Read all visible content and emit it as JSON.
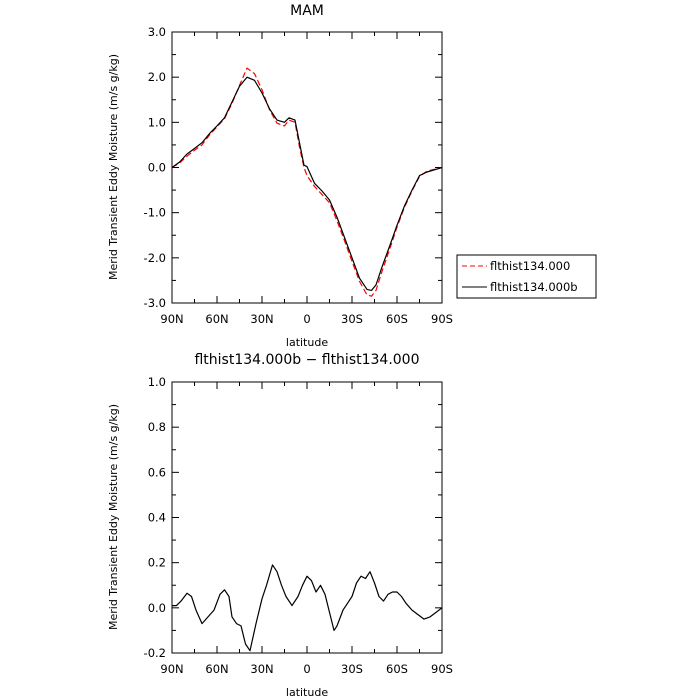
{
  "chart_data": [
    {
      "type": "line",
      "title": "MAM",
      "xlabel": "latitude",
      "ylabel": "Merid Transient Eddy Moisture (m/s g/kg)",
      "xlim": [
        90,
        -90
      ],
      "ylim": [
        -3.0,
        3.0
      ],
      "x_ticks": [
        90,
        60,
        30,
        0,
        -30,
        -60,
        -90
      ],
      "x_tick_labels": [
        "90N",
        "60N",
        "30N",
        "0",
        "30S",
        "60S",
        "90S"
      ],
      "y_ticks": [
        -3.0,
        -2.0,
        -1.0,
        0.0,
        1.0,
        2.0,
        3.0
      ],
      "y_tick_labels": [
        "-3.0",
        "-2.0",
        "-1.0",
        "0.0",
        "1.0",
        "2.0",
        "3.0"
      ],
      "legend": {
        "placement": "outside-right",
        "entries": [
          {
            "label": "flthist134.000",
            "color": "#ff0000",
            "dash": true
          },
          {
            "label": "flthist134.000b",
            "color": "#000000",
            "dash": false
          }
        ]
      },
      "series": [
        {
          "name": "flthist134.000",
          "color": "#ff0000",
          "style": "dashed",
          "x": [
            90,
            85,
            80,
            75,
            70,
            65,
            60,
            55,
            50,
            45,
            40,
            35,
            30,
            25,
            20,
            15,
            12,
            8,
            5,
            2,
            0,
            -5,
            -10,
            -15,
            -20,
            -25,
            -30,
            -35,
            -40,
            -43,
            -46,
            -50,
            -55,
            -60,
            -65,
            -70,
            -75,
            -80,
            -85,
            -90
          ],
          "y": [
            0.0,
            0.1,
            0.25,
            0.38,
            0.5,
            0.72,
            0.9,
            1.08,
            1.42,
            1.82,
            2.2,
            2.08,
            1.72,
            1.28,
            0.98,
            0.92,
            1.05,
            1.0,
            0.45,
            0.0,
            -0.18,
            -0.42,
            -0.6,
            -0.78,
            -1.18,
            -1.62,
            -2.08,
            -2.52,
            -2.82,
            -2.85,
            -2.72,
            -2.3,
            -1.82,
            -1.32,
            -0.88,
            -0.52,
            -0.2,
            -0.08,
            -0.04,
            0.0
          ]
        },
        {
          "name": "flthist134.000b",
          "color": "#000000",
          "style": "solid",
          "x": [
            90,
            85,
            80,
            75,
            70,
            65,
            60,
            55,
            50,
            45,
            40,
            35,
            30,
            25,
            20,
            15,
            12,
            8,
            5,
            2,
            0,
            -5,
            -10,
            -15,
            -20,
            -25,
            -30,
            -35,
            -40,
            -43,
            -46,
            -50,
            -55,
            -60,
            -65,
            -70,
            -75,
            -80,
            -85,
            -90
          ],
          "y": [
            0.0,
            0.12,
            0.3,
            0.42,
            0.55,
            0.75,
            0.92,
            1.1,
            1.45,
            1.8,
            2.0,
            1.93,
            1.65,
            1.3,
            1.05,
            1.0,
            1.1,
            1.05,
            0.55,
            0.05,
            0.02,
            -0.35,
            -0.52,
            -0.72,
            -1.1,
            -1.55,
            -2.0,
            -2.45,
            -2.7,
            -2.72,
            -2.6,
            -2.2,
            -1.75,
            -1.28,
            -0.85,
            -0.5,
            -0.18,
            -0.1,
            -0.05,
            0.0
          ]
        }
      ]
    },
    {
      "type": "line",
      "title": "flthist134.000b − flthist134.000",
      "xlabel": "latitude",
      "ylabel": "Merid Transient Eddy Moisture (m/s g/kg)",
      "xlim": [
        90,
        -90
      ],
      "ylim": [
        -0.2,
        1.0
      ],
      "x_ticks": [
        90,
        60,
        30,
        0,
        -30,
        -60,
        -90
      ],
      "x_tick_labels": [
        "90N",
        "60N",
        "30N",
        "0",
        "30S",
        "60S",
        "90S"
      ],
      "y_ticks": [
        -0.2,
        0.0,
        0.2,
        0.4,
        0.6,
        0.8,
        1.0
      ],
      "y_tick_labels": [
        "-0.2",
        "0.0",
        "0.2",
        "0.4",
        "0.6",
        "0.8",
        "1.0"
      ],
      "series": [
        {
          "color": "#000000",
          "style": "solid",
          "x": [
            90,
            87,
            84,
            80,
            77,
            74,
            70,
            66,
            62,
            58,
            55,
            52,
            50,
            47,
            44,
            41,
            38,
            34,
            30,
            27,
            23,
            20,
            17,
            14,
            10,
            6,
            3,
            0,
            -3,
            -6,
            -9,
            -12,
            -15,
            -18,
            -20,
            -24,
            -27,
            -30,
            -33,
            -36,
            -39,
            -42,
            -45,
            -48,
            -51,
            -54,
            -57,
            -60,
            -63,
            -66,
            -70,
            -74,
            -78,
            -82,
            -86,
            -90
          ],
          "y": [
            0.01,
            0.01,
            0.03,
            0.065,
            0.05,
            -0.01,
            -0.07,
            -0.04,
            -0.01,
            0.06,
            0.08,
            0.05,
            -0.04,
            -0.07,
            -0.08,
            -0.16,
            -0.19,
            -0.07,
            0.04,
            0.1,
            0.19,
            0.16,
            0.1,
            0.05,
            0.01,
            0.05,
            0.1,
            0.14,
            0.12,
            0.07,
            0.1,
            0.06,
            -0.02,
            -0.1,
            -0.08,
            -0.01,
            0.02,
            0.05,
            0.11,
            0.14,
            0.13,
            0.16,
            0.11,
            0.05,
            0.03,
            0.06,
            0.07,
            0.07,
            0.05,
            0.02,
            -0.01,
            -0.03,
            -0.05,
            -0.04,
            -0.02,
            0.0
          ]
        }
      ]
    }
  ]
}
